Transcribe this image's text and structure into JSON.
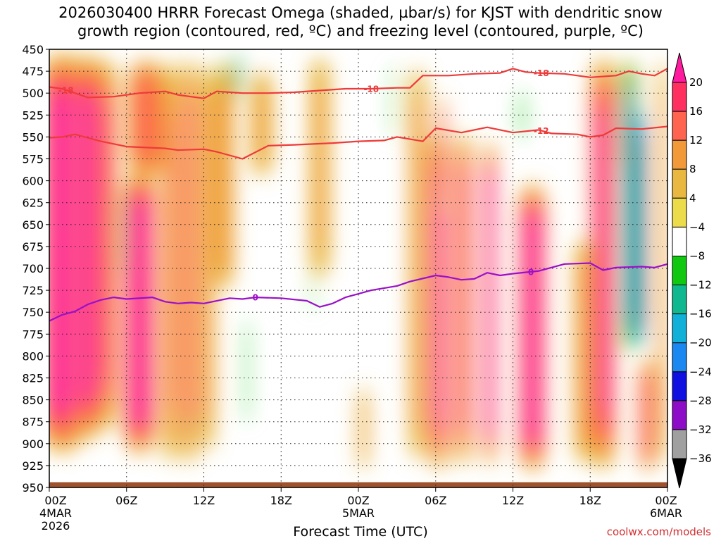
{
  "page": {
    "title_line1": "2026030400 HRRR Forecast Omega (shaded, µbar/s) for KJST with dendritic snow",
    "title_line2": "growth region (contoured, red, ºC) and freezing level (contoured, purple, ºC)",
    "credit": "coolwx.com/models"
  },
  "chart_data": {
    "type": "heatmap",
    "xlabel": "Forecast Time (UTC)",
    "ylabel": "",
    "x_range_hours": [
      0,
      48
    ],
    "y_range_mb": [
      450,
      950
    ],
    "grid": true,
    "x_ticks": [
      {
        "hour": 0,
        "label": "00Z",
        "sub1": "4MAR",
        "sub2": "2026"
      },
      {
        "hour": 6,
        "label": "06Z",
        "sub1": "",
        "sub2": ""
      },
      {
        "hour": 12,
        "label": "12Z",
        "sub1": "",
        "sub2": ""
      },
      {
        "hour": 18,
        "label": "18Z",
        "sub1": "",
        "sub2": ""
      },
      {
        "hour": 24,
        "label": "00Z",
        "sub1": "5MAR",
        "sub2": ""
      },
      {
        "hour": 30,
        "label": "06Z",
        "sub1": "",
        "sub2": ""
      },
      {
        "hour": 36,
        "label": "12Z",
        "sub1": "",
        "sub2": ""
      },
      {
        "hour": 42,
        "label": "18Z",
        "sub1": "",
        "sub2": ""
      },
      {
        "hour": 48,
        "label": "00Z",
        "sub1": "6MAR",
        "sub2": ""
      }
    ],
    "y_ticks": [
      450,
      475,
      500,
      525,
      550,
      575,
      600,
      625,
      650,
      675,
      700,
      725,
      750,
      775,
      800,
      825,
      850,
      875,
      900,
      925,
      950
    ],
    "colorbar": {
      "labels": [
        "20",
        "16",
        "12",
        "8",
        "4",
        "−4",
        "−8",
        "−12",
        "−16",
        "−20",
        "−24",
        "−28",
        "−32",
        "−36"
      ],
      "colors": [
        "#ff1a9e",
        "#ff3060",
        "#ff6450",
        "#f29a3a",
        "#e8b840",
        "#ecdc4c",
        "#ffffff",
        "#10c810",
        "#10b890",
        "#10b0d8",
        "#1a88f0",
        "#1010e0",
        "#8c0cc8",
        "#a0a0a0",
        "#000000"
      ]
    },
    "omega_bands": [
      {
        "hour": 1.0,
        "hour_width": 3.5,
        "p_top": 450,
        "p_bottom": 915,
        "peak": 22
      },
      {
        "hour": 3.0,
        "hour_width": 2.4,
        "p_top": 452,
        "p_bottom": 900,
        "peak": 22
      },
      {
        "hour": 4.5,
        "hour_width": 1.5,
        "p_top": 455,
        "p_bottom": 890,
        "peak": 14
      },
      {
        "hour": 7.0,
        "hour_width": 2.6,
        "p_top": 585,
        "p_bottom": 915,
        "peak": 22
      },
      {
        "hour": 7.5,
        "hour_width": 3.2,
        "p_top": 460,
        "p_bottom": 600,
        "peak": 12
      },
      {
        "hour": 9.4,
        "hour_width": 1.4,
        "p_top": 455,
        "p_bottom": 930,
        "peak": 10
      },
      {
        "hour": 10.9,
        "hour_width": 1.3,
        "p_top": 455,
        "p_bottom": 930,
        "peak": 13
      },
      {
        "hour": 12.3,
        "hour_width": 1.2,
        "p_top": 458,
        "p_bottom": 920,
        "peak": 8
      },
      {
        "hour": 13.6,
        "hour_width": 1.6,
        "p_top": 460,
        "p_bottom": 730,
        "peak": 9
      },
      {
        "hour": 16.5,
        "hour_width": 2.0,
        "p_top": 470,
        "p_bottom": 600,
        "peak": 6
      },
      {
        "hour": 21.0,
        "hour_width": 1.8,
        "p_top": 450,
        "p_bottom": 720,
        "peak": 6
      },
      {
        "hour": 24.4,
        "hour_width": 0.9,
        "p_top": 830,
        "p_bottom": 935,
        "peak": 6
      },
      {
        "hour": 28.6,
        "hour_width": 1.4,
        "p_top": 460,
        "p_bottom": 930,
        "peak": 8
      },
      {
        "hour": 30.2,
        "hour_width": 1.5,
        "p_top": 540,
        "p_bottom": 935,
        "peak": 18
      },
      {
        "hour": 30.5,
        "hour_width": 0.6,
        "p_top": 500,
        "p_bottom": 640,
        "peak": 14
      },
      {
        "hour": 32.1,
        "hour_width": 1.3,
        "p_top": 540,
        "p_bottom": 930,
        "peak": 16
      },
      {
        "hour": 34.2,
        "hour_width": 1.0,
        "p_top": 550,
        "p_bottom": 930,
        "peak": 22
      },
      {
        "hour": 37.5,
        "hour_width": 2.2,
        "p_top": 600,
        "p_bottom": 935,
        "peak": 22
      },
      {
        "hour": 41.5,
        "hour_width": 1.6,
        "p_top": 660,
        "p_bottom": 930,
        "peak": 8
      },
      {
        "hour": 43.0,
        "hour_width": 2.0,
        "p_top": 455,
        "p_bottom": 935,
        "peak": 18
      },
      {
        "hour": 45.0,
        "hour_width": 1.5,
        "p_top": 460,
        "p_bottom": 600,
        "peak": 12
      },
      {
        "hour": 46.4,
        "hour_width": 1.3,
        "p_top": 800,
        "p_bottom": 935,
        "peak": 14
      },
      {
        "hour": 47.6,
        "hour_width": 0.8,
        "p_top": 450,
        "p_bottom": 935,
        "peak": 8
      },
      {
        "hour": 14.6,
        "hour_width": 0.7,
        "p_top": 450,
        "p_bottom": 510,
        "peak": -12
      },
      {
        "hour": 13.3,
        "hour_width": 0.5,
        "p_top": 455,
        "p_bottom": 500,
        "peak": -6
      },
      {
        "hour": 15.3,
        "hour_width": 0.4,
        "p_top": 740,
        "p_bottom": 895,
        "peak": -7
      },
      {
        "hour": 5.8,
        "hour_width": 0.4,
        "p_top": 600,
        "p_bottom": 720,
        "peak": -9
      },
      {
        "hour": 26.8,
        "hour_width": 0.5,
        "p_top": 450,
        "p_bottom": 570,
        "peak": -6
      },
      {
        "hour": 36.7,
        "hour_width": 0.5,
        "p_top": 490,
        "p_bottom": 560,
        "peak": -8
      },
      {
        "hour": 45.0,
        "hour_width": 1.2,
        "p_top": 450,
        "p_bottom": 810,
        "peak": -14
      },
      {
        "hour": 45.8,
        "hour_width": 0.75,
        "p_top": 515,
        "p_bottom": 795,
        "peak": -44
      },
      {
        "hour": 20.5,
        "hour_width": 0.3,
        "p_top": 690,
        "p_bottom": 760,
        "peak": -6
      },
      {
        "hour": 11.0,
        "hour_width": 0.3,
        "p_top": 865,
        "p_bottom": 890,
        "peak": -6
      },
      {
        "hour": 8.9,
        "hour_width": 0.3,
        "p_top": 470,
        "p_bottom": 520,
        "peak": -5
      }
    ],
    "contours": [
      {
        "name": "dgz-minus18",
        "value": -18,
        "color": "#ee3a3a",
        "label": "-18",
        "label_hours": [
          1.3,
          25.0,
          38.2
        ],
        "points": [
          [
            0,
            493
          ],
          [
            1,
            495
          ],
          [
            3,
            505
          ],
          [
            5,
            504
          ],
          [
            7,
            500
          ],
          [
            9,
            498
          ],
          [
            10,
            502
          ],
          [
            12,
            506
          ],
          [
            13,
            498
          ],
          [
            15,
            500
          ],
          [
            17,
            500
          ],
          [
            19,
            499
          ],
          [
            21,
            497
          ],
          [
            23,
            495
          ],
          [
            25,
            495
          ],
          [
            27,
            494
          ],
          [
            28,
            494
          ],
          [
            29,
            480
          ],
          [
            31,
            480
          ],
          [
            33,
            478
          ],
          [
            35,
            477
          ],
          [
            36,
            472
          ],
          [
            37,
            476
          ],
          [
            38,
            477
          ],
          [
            40,
            478
          ],
          [
            42,
            482
          ],
          [
            44,
            480
          ],
          [
            45,
            475
          ],
          [
            46,
            478
          ],
          [
            47,
            480
          ],
          [
            48,
            472
          ]
        ]
      },
      {
        "name": "dgz-minus12",
        "value": -12,
        "color": "#ee3a3a",
        "label": "-12",
        "label_hours": [
          38.2
        ],
        "points": [
          [
            0,
            551
          ],
          [
            1,
            550
          ],
          [
            2,
            547
          ],
          [
            4,
            555
          ],
          [
            6,
            561
          ],
          [
            9,
            563
          ],
          [
            10,
            565
          ],
          [
            12,
            564
          ],
          [
            13,
            567
          ],
          [
            15,
            575
          ],
          [
            17,
            560
          ],
          [
            19,
            559
          ],
          [
            22,
            557
          ],
          [
            24,
            555
          ],
          [
            26,
            554
          ],
          [
            27,
            550
          ],
          [
            29,
            555
          ],
          [
            30,
            540
          ],
          [
            32,
            545
          ],
          [
            34,
            539
          ],
          [
            36,
            545
          ],
          [
            38,
            542
          ],
          [
            39,
            546
          ],
          [
            41,
            547
          ],
          [
            42,
            550
          ],
          [
            43,
            548
          ],
          [
            44,
            540
          ],
          [
            46,
            541
          ],
          [
            48,
            538
          ]
        ]
      },
      {
        "name": "freezing-level",
        "value": 0,
        "color": "#9a10c8",
        "label": "0",
        "label_hours": [
          16.0,
          37.4
        ],
        "points": [
          [
            0,
            760
          ],
          [
            1,
            753
          ],
          [
            2,
            749
          ],
          [
            3,
            741
          ],
          [
            4,
            736
          ],
          [
            5,
            733
          ],
          [
            6,
            735
          ],
          [
            8,
            733
          ],
          [
            9,
            738
          ],
          [
            10,
            740
          ],
          [
            11,
            739
          ],
          [
            12,
            740
          ],
          [
            14,
            734
          ],
          [
            15,
            735
          ],
          [
            16,
            733
          ],
          [
            18,
            734
          ],
          [
            20,
            737
          ],
          [
            21,
            744
          ],
          [
            22,
            740
          ],
          [
            23,
            733
          ],
          [
            25,
            725
          ],
          [
            27,
            720
          ],
          [
            28,
            715
          ],
          [
            30,
            708
          ],
          [
            31,
            710
          ],
          [
            32,
            713
          ],
          [
            33,
            712
          ],
          [
            34,
            705
          ],
          [
            35,
            708
          ],
          [
            36,
            706
          ],
          [
            38,
            703
          ],
          [
            40,
            695
          ],
          [
            42,
            694
          ],
          [
            43,
            702
          ],
          [
            44,
            699
          ],
          [
            46,
            698
          ],
          [
            47,
            699
          ],
          [
            48,
            695
          ]
        ]
      }
    ]
  }
}
